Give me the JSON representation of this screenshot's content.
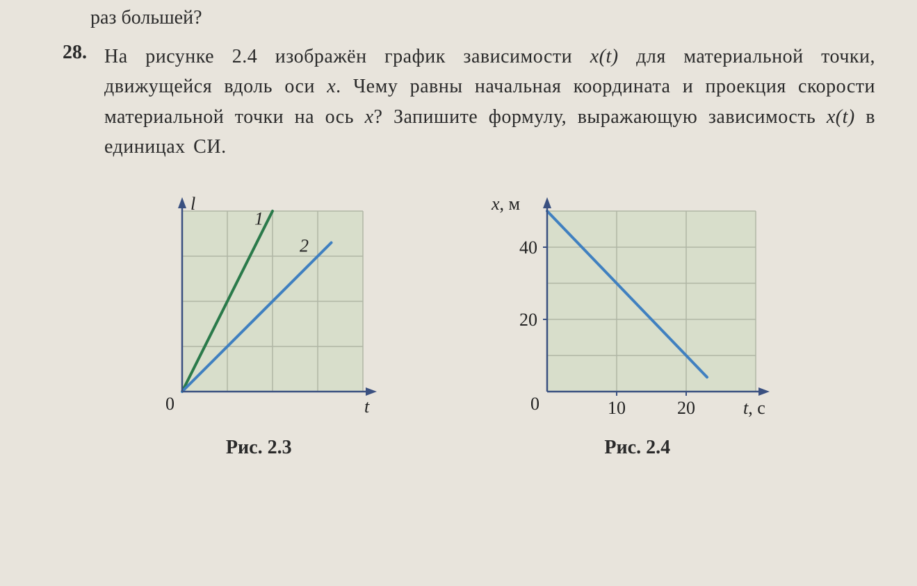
{
  "fragment": "раз большей?",
  "problem": {
    "number": "28.",
    "text_parts": {
      "p1": "На рисунке 2.4 изображён график зависимости ",
      "var1": "x(t)",
      "p2": " для ма­териальной точки, движущейся вдоль оси ",
      "var2": "x",
      "p3": ". Чему равны начальная координата и проекция скорости материальной точки на ось ",
      "var3": "x",
      "p4": "? Запишите формулу, выражающую зависи­мость ",
      "var4": "x(t)",
      "p5": " в единицах СИ."
    }
  },
  "figure23": {
    "caption": "Рис. 2.3",
    "type": "line",
    "y_axis_label": "l",
    "x_axis_label": "t",
    "origin_label": "0",
    "grid_cells_x": 4,
    "grid_cells_y": 4,
    "background_color": "#d8decb",
    "grid_color": "#b0b6a5",
    "axis_color": "#3a5080",
    "line_labels": [
      "1",
      "2"
    ],
    "series": [
      {
        "label": "1",
        "color": "#2a7a4a",
        "line_width": 4,
        "points": [
          [
            0,
            0
          ],
          [
            2,
            4
          ]
        ]
      },
      {
        "label": "2",
        "color": "#4080c0",
        "line_width": 4,
        "points": [
          [
            0,
            0
          ],
          [
            3.3,
            3.3
          ]
        ]
      }
    ],
    "label_fontsize": 26,
    "axis_fontsize": 26
  },
  "figure24": {
    "caption": "Рис. 2.4",
    "type": "line",
    "y_axis_label": "x, м",
    "x_axis_label": "t, с",
    "origin_label": "0",
    "xlim": [
      0,
      30
    ],
    "ylim": [
      0,
      50
    ],
    "xtick_step": 10,
    "ytick_step": 10,
    "x_labeled_ticks": [
      10,
      20
    ],
    "y_labeled_ticks": [
      20,
      40
    ],
    "background_color": "#d8decb",
    "grid_color": "#b0b6a5",
    "axis_color": "#3a5080",
    "series": [
      {
        "color": "#4080c0",
        "line_width": 4,
        "points": [
          [
            0,
            50
          ],
          [
            23,
            4
          ]
        ]
      }
    ],
    "label_fontsize": 26,
    "axis_fontsize": 26
  }
}
